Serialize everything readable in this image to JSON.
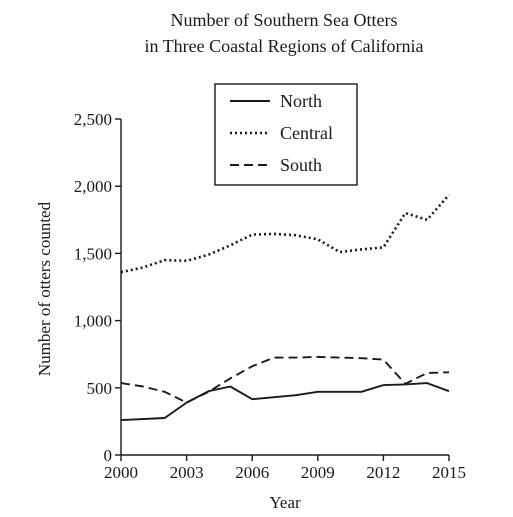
{
  "chart_data": {
    "type": "line",
    "title": [
      "Number of Southern Sea Otters",
      "in Three Coastal Regions of California"
    ],
    "xlabel": "Year",
    "ylabel": "Number of otters counted",
    "xlim": [
      2000,
      2015
    ],
    "ylim": [
      0,
      2500
    ],
    "x_ticks": [
      2000,
      2003,
      2006,
      2009,
      2012,
      2015
    ],
    "y_ticks": [
      {
        "value": 0,
        "label": "0"
      },
      {
        "value": 500,
        "label": "500"
      },
      {
        "value": 1000,
        "label": "1,000"
      },
      {
        "value": 1500,
        "label": "1,500"
      },
      {
        "value": 2000,
        "label": "2,000"
      },
      {
        "value": 2500,
        "label": "2,500"
      }
    ],
    "grid": false,
    "legend_position": "top-center",
    "series": [
      {
        "name": "North",
        "style": "solid",
        "color": "#1a1a1a",
        "points": [
          [
            2000,
            260
          ],
          [
            2002,
            275
          ],
          [
            2003,
            390
          ],
          [
            2004,
            475
          ],
          [
            2005,
            510
          ],
          [
            2006,
            415
          ],
          [
            2007,
            430
          ],
          [
            2008,
            445
          ],
          [
            2009,
            470
          ],
          [
            2010,
            470
          ],
          [
            2011,
            470
          ],
          [
            2012,
            520
          ],
          [
            2013,
            525
          ],
          [
            2014,
            535
          ],
          [
            2015,
            475
          ]
        ]
      },
      {
        "name": "Central",
        "style": "dotted",
        "color": "#1a1a1a",
        "points": [
          [
            2000,
            1360
          ],
          [
            2001,
            1395
          ],
          [
            2002,
            1450
          ],
          [
            2003,
            1445
          ],
          [
            2004,
            1490
          ],
          [
            2005,
            1560
          ],
          [
            2006,
            1640
          ],
          [
            2007,
            1645
          ],
          [
            2008,
            1635
          ],
          [
            2009,
            1605
          ],
          [
            2010,
            1510
          ],
          [
            2011,
            1530
          ],
          [
            2012,
            1545
          ],
          [
            2013,
            1800
          ],
          [
            2014,
            1750
          ],
          [
            2015,
            1935
          ]
        ]
      },
      {
        "name": "South",
        "style": "dashed",
        "color": "#1a1a1a",
        "points": [
          [
            2000,
            535
          ],
          [
            2001,
            510
          ],
          [
            2002,
            470
          ],
          [
            2003,
            390
          ],
          [
            2004,
            470
          ],
          [
            2005,
            570
          ],
          [
            2006,
            660
          ],
          [
            2007,
            725
          ],
          [
            2008,
            725
          ],
          [
            2009,
            730
          ],
          [
            2010,
            725
          ],
          [
            2011,
            720
          ],
          [
            2012,
            710
          ],
          [
            2013,
            530
          ],
          [
            2014,
            610
          ],
          [
            2015,
            615
          ]
        ]
      }
    ]
  }
}
